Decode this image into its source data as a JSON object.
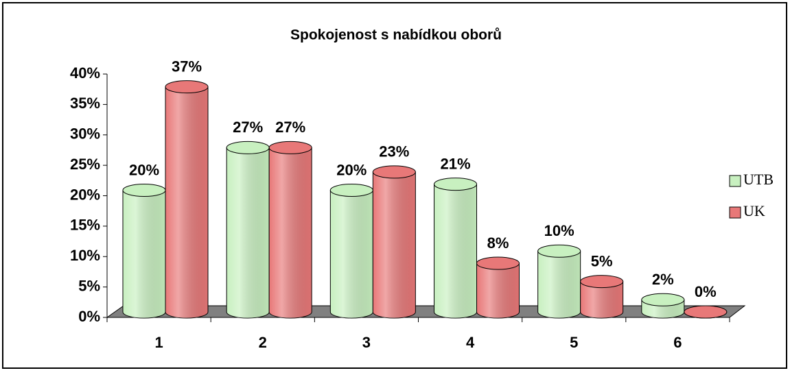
{
  "chart_data": {
    "type": "bar3d",
    "title": "Spokojenost s nabídkou oborů",
    "categories": [
      "1",
      "2",
      "3",
      "4",
      "5",
      "6"
    ],
    "series": [
      {
        "name": "UTB",
        "color": "#c8f0c0",
        "values": [
          20,
          27,
          20,
          21,
          10,
          2
        ],
        "value_labels": [
          "20%",
          "27%",
          "20%",
          "21%",
          "10%",
          "2%"
        ]
      },
      {
        "name": "UK",
        "color": "#e87878",
        "values": [
          37,
          27,
          23,
          8,
          5,
          0
        ],
        "value_labels": [
          "37%",
          "27%",
          "23%",
          "8%",
          "5%",
          "0%"
        ]
      }
    ],
    "ylim": [
      0,
      40
    ],
    "yticks": [
      {
        "value": 0,
        "label": "0%"
      },
      {
        "value": 5,
        "label": "5%"
      },
      {
        "value": 10,
        "label": "10%"
      },
      {
        "value": 15,
        "label": "15%"
      },
      {
        "value": 20,
        "label": "20%"
      },
      {
        "value": 25,
        "label": "25%"
      },
      {
        "value": 30,
        "label": "30%"
      },
      {
        "value": 35,
        "label": "35%"
      },
      {
        "value": 40,
        "label": "40%"
      }
    ],
    "grid": false,
    "legend": "right"
  }
}
